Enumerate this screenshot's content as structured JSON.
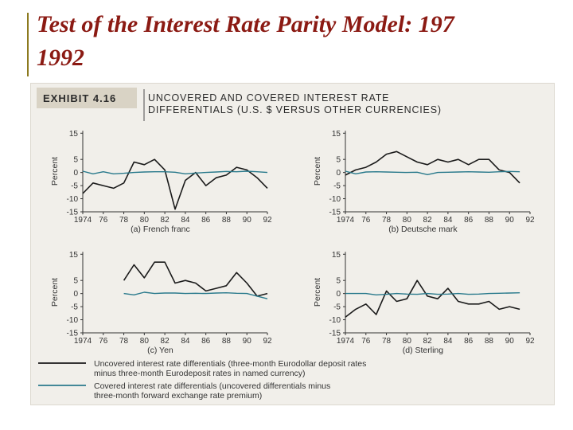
{
  "slide": {
    "title_line1": "Test of the Interest Rate Parity Model: 197",
    "title_line2": "1992"
  },
  "exhibit": {
    "label": "EXHIBIT 4.16",
    "heading_line1": "UNCOVERED AND COVERED INTEREST RATE",
    "heading_line2": "DIFFERENTIALS (U.S. $ VERSUS OTHER CURRENCIES)"
  },
  "colors": {
    "uncovered": "#1a1a1a",
    "covered": "#2a7a8c",
    "accent_bar": "#8c7a1f",
    "title_text": "#8b1a13"
  },
  "chart_data": [
    {
      "type": "line",
      "caption": "(a) French franc",
      "ylabel": "Percent",
      "yticks": [
        "15",
        "5",
        "0",
        "-5",
        "-10",
        "-15"
      ],
      "ytick_values": [
        15,
        5,
        0,
        -5,
        -10,
        -15
      ],
      "xticks": [
        "1974",
        "76",
        "78",
        "80",
        "82",
        "84",
        "86",
        "88",
        "90",
        "92"
      ],
      "xtick_values": [
        1974,
        1976,
        1978,
        1980,
        1982,
        1984,
        1986,
        1988,
        1990,
        1992
      ],
      "xlim": [
        1974,
        1992
      ],
      "ylim": [
        -15,
        16
      ],
      "series": [
        {
          "key": "uncovered",
          "x": [
            1974,
            1975,
            1976,
            1977,
            1978,
            1979,
            1980,
            1981,
            1982,
            1983,
            1984,
            1985,
            1986,
            1987,
            1988,
            1989,
            1990,
            1991,
            1992
          ],
          "y": [
            -8,
            -4,
            -5,
            -6,
            -4,
            4,
            3,
            5,
            1,
            -14,
            -3,
            0,
            -5,
            -2,
            -1,
            2,
            1,
            -2,
            -6
          ]
        },
        {
          "key": "covered",
          "x": [
            1974,
            1975,
            1976,
            1977,
            1978,
            1979,
            1980,
            1981,
            1982,
            1983,
            1984,
            1985,
            1986,
            1987,
            1988,
            1989,
            1990,
            1991,
            1992
          ],
          "y": [
            0.5,
            -0.5,
            0.3,
            -0.5,
            -0.3,
            0,
            0.2,
            0.3,
            0.3,
            0.1,
            -0.5,
            -0.2,
            0,
            0.2,
            0.4,
            0.3,
            0.5,
            0.3,
            0
          ]
        }
      ]
    },
    {
      "type": "line",
      "caption": "(b) Deutsche mark",
      "ylabel": "Percent",
      "yticks": [
        "15",
        "5",
        "0",
        "-5",
        "-10",
        "-15"
      ],
      "ytick_values": [
        15,
        5,
        0,
        -5,
        -10,
        -15
      ],
      "xticks": [
        "1974",
        "76",
        "78",
        "80",
        "82",
        "84",
        "86",
        "88",
        "90",
        "92"
      ],
      "xtick_values": [
        1974,
        1976,
        1978,
        1980,
        1982,
        1984,
        1986,
        1988,
        1990,
        1992
      ],
      "xlim": [
        1974,
        1992
      ],
      "ylim": [
        -15,
        16
      ],
      "series": [
        {
          "key": "uncovered",
          "x": [
            1974,
            1975,
            1976,
            1977,
            1978,
            1979,
            1980,
            1981,
            1982,
            1983,
            1984,
            1985,
            1986,
            1987,
            1988,
            1989,
            1990,
            1991
          ],
          "y": [
            -1,
            1,
            2,
            4,
            7,
            8,
            6,
            4,
            3,
            5,
            4,
            5,
            3,
            5,
            5,
            1,
            0,
            -4
          ]
        },
        {
          "key": "covered",
          "x": [
            1974,
            1975,
            1976,
            1977,
            1978,
            1979,
            1980,
            1981,
            1982,
            1983,
            1984,
            1985,
            1986,
            1987,
            1988,
            1989,
            1990,
            1991
          ],
          "y": [
            0.5,
            -0.5,
            0.2,
            0.3,
            0.2,
            0.1,
            0,
            0.1,
            -0.8,
            0,
            0.1,
            0.2,
            0.3,
            0.2,
            0.1,
            0.3,
            0.4,
            0.3
          ]
        }
      ]
    },
    {
      "type": "line",
      "caption": "(c) Yen",
      "ylabel": "Percent",
      "yticks": [
        "15",
        "5",
        "0",
        "-5",
        "-10",
        "-15"
      ],
      "ytick_values": [
        15,
        5,
        0,
        -5,
        -10,
        -15
      ],
      "xticks": [
        "1974",
        "76",
        "78",
        "80",
        "82",
        "84",
        "86",
        "88",
        "90",
        "92"
      ],
      "xtick_values": [
        1974,
        1976,
        1978,
        1980,
        1982,
        1984,
        1986,
        1988,
        1990,
        1992
      ],
      "xlim": [
        1974,
        1992
      ],
      "ylim": [
        -15,
        16
      ],
      "series": [
        {
          "key": "uncovered",
          "x": [
            1978,
            1979,
            1980,
            1981,
            1982,
            1983,
            1984,
            1985,
            1986,
            1987,
            1988,
            1989,
            1990,
            1991,
            1992
          ],
          "y": [
            5,
            11,
            6,
            12,
            12,
            4,
            5,
            4,
            1,
            2,
            3,
            8,
            4,
            -1,
            0
          ]
        },
        {
          "key": "covered",
          "x": [
            1978,
            1979,
            1980,
            1981,
            1982,
            1983,
            1984,
            1985,
            1986,
            1987,
            1988,
            1989,
            1990,
            1991,
            1992
          ],
          "y": [
            0,
            -0.5,
            0.5,
            0,
            0.2,
            0.2,
            0,
            0.1,
            0,
            0.2,
            0.3,
            0.1,
            0,
            -1,
            -2
          ]
        }
      ]
    },
    {
      "type": "line",
      "caption": "(d) Sterling",
      "ylabel": "Percent",
      "yticks": [
        "15",
        "5",
        "0",
        "-5",
        "-10",
        "-15"
      ],
      "ytick_values": [
        15,
        5,
        0,
        -5,
        -10,
        -15
      ],
      "xticks": [
        "1974",
        "76",
        "78",
        "80",
        "82",
        "84",
        "86",
        "88",
        "90",
        "92"
      ],
      "xtick_values": [
        1974,
        1976,
        1978,
        1980,
        1982,
        1984,
        1986,
        1988,
        1990,
        1992
      ],
      "xlim": [
        1974,
        1992
      ],
      "ylim": [
        -15,
        16
      ],
      "series": [
        {
          "key": "uncovered",
          "x": [
            1974,
            1975,
            1976,
            1977,
            1978,
            1979,
            1980,
            1981,
            1982,
            1983,
            1984,
            1985,
            1986,
            1987,
            1988,
            1989,
            1990,
            1991
          ],
          "y": [
            -9,
            -6,
            -4,
            -8,
            1,
            -3,
            -2,
            5,
            -1,
            -2,
            2,
            -3,
            -4,
            -4,
            -3,
            -6,
            -5,
            -6
          ]
        },
        {
          "key": "covered",
          "x": [
            1974,
            1975,
            1976,
            1977,
            1978,
            1979,
            1980,
            1981,
            1982,
            1983,
            1984,
            1985,
            1986,
            1987,
            1988,
            1989,
            1990,
            1991
          ],
          "y": [
            0,
            0,
            0,
            -0.5,
            -0.3,
            0,
            -0.2,
            -0.3,
            0,
            -0.3,
            -0.2,
            0,
            -0.3,
            -0.2,
            0,
            0.1,
            0.2,
            0.3
          ]
        }
      ]
    }
  ],
  "legend": [
    {
      "key": "uncovered",
      "line1": "Uncovered interest rate differentials (three-month Eurodollar deposit rates",
      "line2": "minus three-month Eurodeposit rates in named currency)"
    },
    {
      "key": "covered",
      "line1": "Covered interest rate differentials (uncovered differentials minus",
      "line2": "three-month forward exchange rate premium)"
    }
  ]
}
